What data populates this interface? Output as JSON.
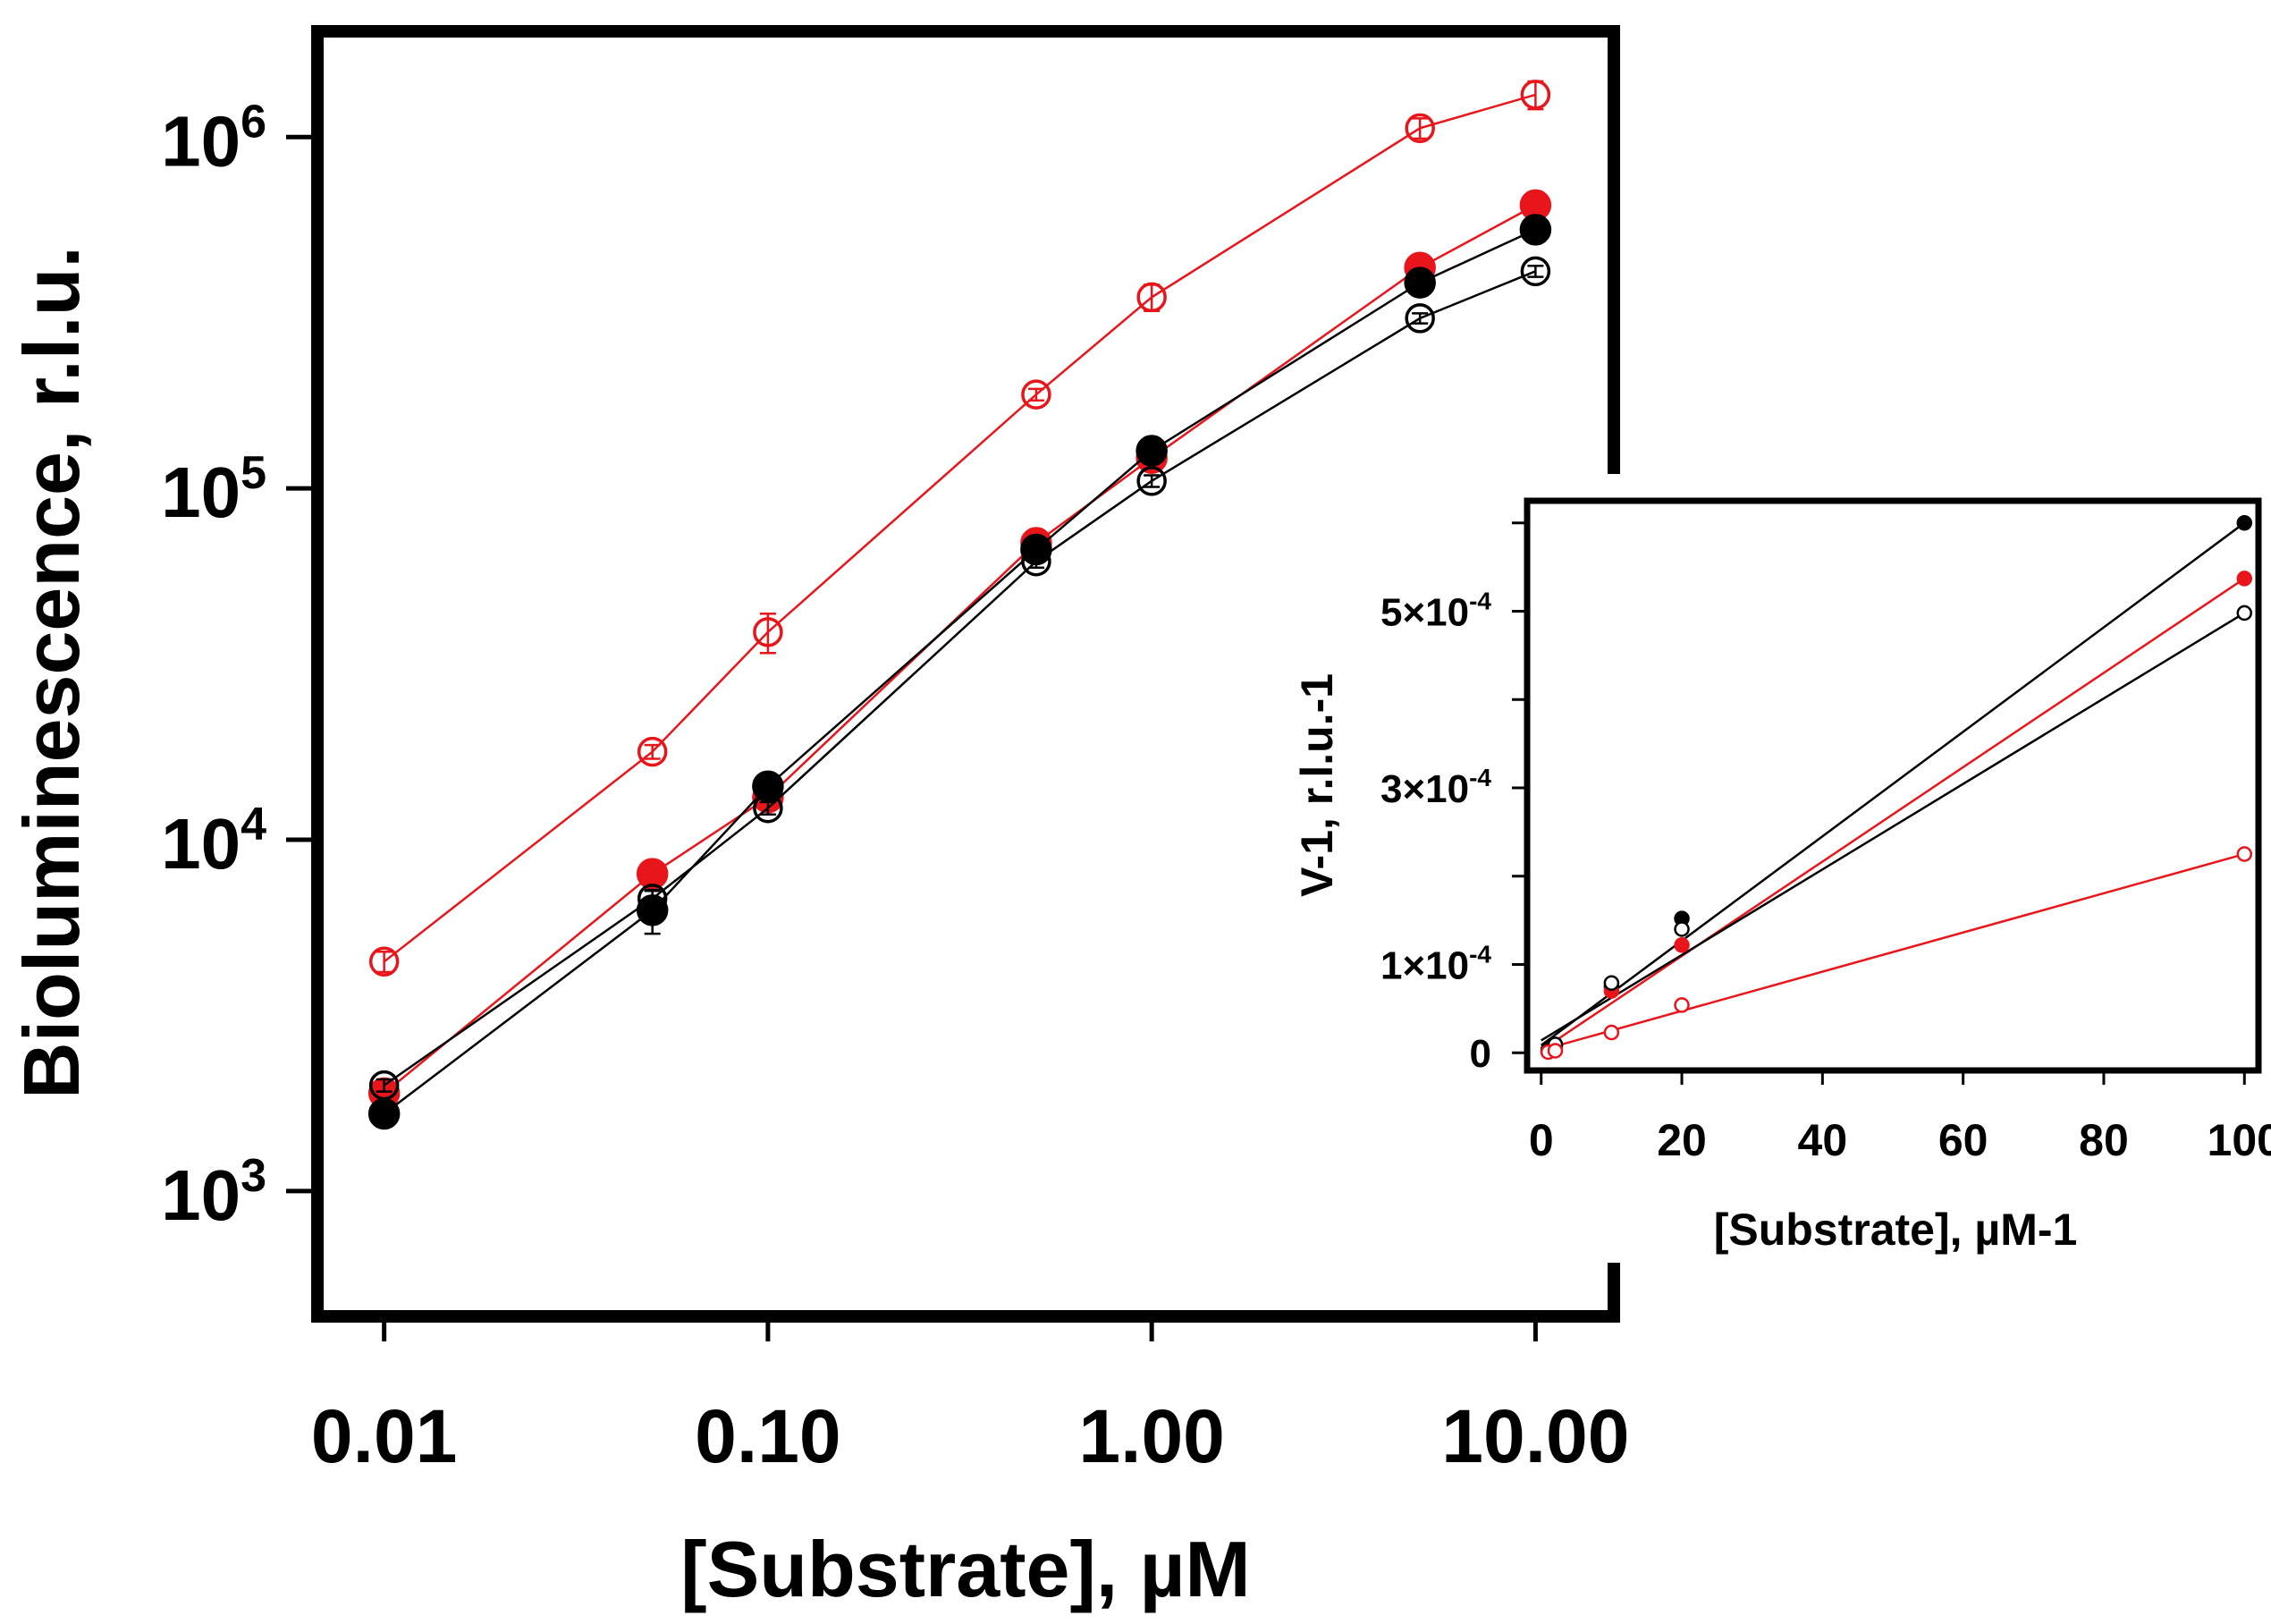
{
  "chart_data": [
    {
      "type": "line",
      "xlabel": "[Substrate], µM",
      "ylabel": "Bioluminescence, r.l.u.",
      "x_scale": "log",
      "y_scale": "log",
      "xlim": [
        0.0067,
        16
      ],
      "ylim": [
        440,
        2000000
      ],
      "x_ticks": [
        0.01,
        0.1,
        1,
        10
      ],
      "x_tick_labels": [
        "0.01",
        "0.10",
        "1.00",
        "10.00"
      ],
      "y_ticks": [
        1000,
        10000,
        100000,
        1000000
      ],
      "y_tick_labels": [
        {
          "base": "10",
          "exp": "3"
        },
        {
          "base": "10",
          "exp": "4"
        },
        {
          "base": "10",
          "exp": "5"
        },
        {
          "base": "10",
          "exp": "6"
        }
      ],
      "grid": false,
      "x": [
        0.01,
        0.05,
        0.1,
        0.5,
        1,
        5,
        10
      ],
      "series": [
        {
          "color": "#e8151b",
          "marker": "open-circle",
          "values": [
            4500,
            17800,
            39000,
            185000,
            350000,
            1060000,
            1320000
          ],
          "err": [
            300,
            800,
            5000,
            7000,
            30000,
            70000,
            120000
          ]
        },
        {
          "color": "#e8151b",
          "marker": "filled-circle",
          "values": [
            1900,
            8000,
            13200,
            70000,
            122000,
            425000,
            640000
          ],
          "err": [
            150,
            350,
            800,
            4000,
            5000,
            15000,
            25000
          ]
        },
        {
          "color": "#000000",
          "marker": "filled-circle",
          "values": [
            1660,
            6300,
            14200,
            67000,
            128000,
            385000,
            545000
          ],
          "err": [
            90,
            900,
            600,
            3000,
            5000,
            15000,
            20000
          ]
        },
        {
          "color": "#000000",
          "marker": "open-circle",
          "values": [
            2000,
            6800,
            12300,
            62000,
            105000,
            305000,
            415000
          ],
          "err": [
            80,
            350,
            500,
            2500,
            4000,
            10000,
            15000
          ]
        }
      ]
    },
    {
      "type": "line",
      "xlabel": "[Substrate], µM-1",
      "ylabel": "V-1, r.l.u.-1",
      "xlim": [
        -2,
        102
      ],
      "ylim": [
        -2e-05,
        0.000625
      ],
      "x_ticks": [
        0,
        20,
        40,
        60,
        80,
        100
      ],
      "x_tick_labels": [
        "0",
        "20",
        "40",
        "60",
        "80",
        "100"
      ],
      "y_ticks": [
        0,
        0.0001,
        0.0003,
        0.0005
      ],
      "y_tick_labels": [
        "0",
        "1×10-4",
        "3×10-4",
        "5×10-4"
      ],
      "grid": false,
      "x": [
        1,
        2,
        10,
        20,
        100
      ],
      "series": [
        {
          "color": "#000000",
          "marker": "filled-circle",
          "values": [
            3.3e-06,
            7.8e-06,
            7.5e-05,
            0.000152,
            0.0006
          ]
        },
        {
          "color": "#e8151b",
          "marker": "filled-circle",
          "values": [
            1.2e-06,
            7.5e-06,
            7e-05,
            0.000122,
            0.000537
          ]
        },
        {
          "color": "#000000",
          "marker": "open-circle",
          "values": [
            2.9e-06,
            9.5e-06,
            7.9e-05,
            0.00014,
            0.000498
          ]
        },
        {
          "color": "#e8151b",
          "marker": "open-circle",
          "values": [
            8e-07,
            2.3e-06,
            2.3e-05,
            5.4e-05,
            0.000225
          ]
        }
      ],
      "fit_lines": [
        {
          "color": "#000000",
          "from": [
            0,
            8.5e-06
          ],
          "to": [
            100,
            0.0006
          ]
        },
        {
          "color": "#e8151b",
          "from": [
            0,
            2.8e-06
          ],
          "to": [
            100,
            0.000537
          ]
        },
        {
          "color": "#000000",
          "from": [
            0,
            1.4e-05
          ],
          "to": [
            100,
            0.000498
          ]
        },
        {
          "color": "#e8151b",
          "from": [
            0,
            3e-06
          ],
          "to": [
            100,
            0.000225
          ]
        }
      ]
    }
  ]
}
